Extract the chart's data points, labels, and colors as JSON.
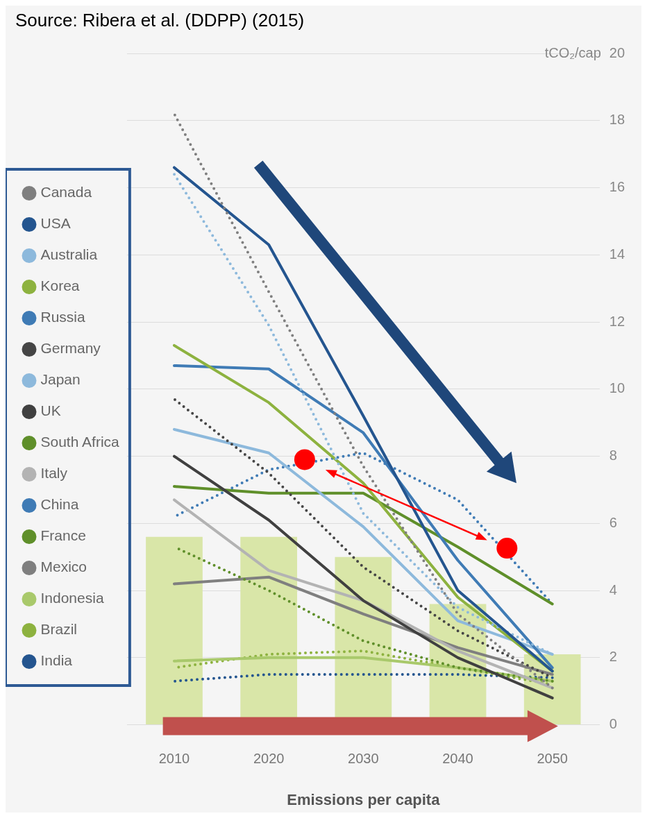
{
  "chart_data": {
    "type": "line",
    "annotations": [
      "Source: Ribera et al. (DDPP) (2015)"
    ],
    "xlabel": "Emissions per capita",
    "ylabel": "tCO₂/cap",
    "categories": [
      "2010",
      "2020",
      "2030",
      "2040",
      "2050"
    ],
    "ylim": [
      0,
      20
    ],
    "yticks": [
      0,
      2,
      4,
      6,
      8,
      10,
      12,
      14,
      16,
      18,
      20
    ],
    "grid": "y",
    "legend": "left",
    "series": [
      {
        "name": "Canada",
        "color": "#7f7f7f",
        "line_style": "dotted",
        "values": [
          18.2,
          12.9,
          7.7,
          3.3,
          1.1
        ]
      },
      {
        "name": "USA",
        "color": "#24558f",
        "line_style": "solid",
        "values": [
          16.6,
          14.3,
          9.2,
          4.0,
          1.6
        ]
      },
      {
        "name": "Australia",
        "color": "#8db9dc",
        "line_style": "dotted",
        "values": [
          16.4,
          11.9,
          6.3,
          3.5,
          2.1
        ]
      },
      {
        "name": "Korea",
        "color": "#8db23f",
        "line_style": "solid",
        "values": [
          11.3,
          9.6,
          7.2,
          3.8,
          1.6
        ]
      },
      {
        "name": "Russia",
        "color": "#3f7bb5",
        "line_style": "solid",
        "values": [
          10.7,
          10.6,
          8.7,
          4.9,
          1.7
        ]
      },
      {
        "name": "Germany",
        "color": "#454545",
        "line_style": "dotted",
        "values": [
          9.7,
          7.5,
          4.7,
          2.8,
          1.4
        ]
      },
      {
        "name": "Japan",
        "color": "#8db9dc",
        "line_style": "solid",
        "values": [
          8.8,
          8.1,
          5.9,
          3.1,
          2.1
        ]
      },
      {
        "name": "UK",
        "color": "#404040",
        "line_style": "solid",
        "values": [
          8.0,
          6.1,
          3.7,
          2.0,
          0.8
        ]
      },
      {
        "name": "South Africa",
        "color": "#5f8f2a",
        "line_style": "solid",
        "values": [
          7.1,
          6.9,
          6.9,
          5.3,
          3.6
        ]
      },
      {
        "name": "Italy",
        "color": "#b3b3b3",
        "line_style": "solid",
        "values": [
          6.7,
          4.6,
          3.7,
          2.2,
          1.1
        ]
      },
      {
        "name": "China",
        "color": "#3f7bb5",
        "line_style": "dotted",
        "values": [
          6.2,
          7.6,
          8.1,
          6.7,
          3.6
        ]
      },
      {
        "name": "France",
        "color": "#5f8f2a",
        "line_style": "dotted",
        "values": [
          5.3,
          4.0,
          2.5,
          1.7,
          1.3
        ]
      },
      {
        "name": "Mexico",
        "color": "#7f7f7f",
        "line_style": "solid",
        "values": [
          4.2,
          4.4,
          3.3,
          2.3,
          1.5
        ]
      },
      {
        "name": "Indonesia",
        "color": "#a9c96b",
        "line_style": "solid",
        "values": [
          1.9,
          2.0,
          2.0,
          1.7,
          1.3
        ]
      },
      {
        "name": "Brazil",
        "color": "#8db23f",
        "line_style": "dotted",
        "values": [
          1.7,
          2.1,
          2.2,
          1.7,
          1.2
        ]
      },
      {
        "name": "India",
        "color": "#24558f",
        "line_style": "dotted",
        "values": [
          1.3,
          1.5,
          1.5,
          1.5,
          1.4
        ]
      },
      {
        "type": "bar",
        "color": "#d9e6a8",
        "values": [
          5.6,
          5.6,
          5.0,
          3.6,
          2.1
        ]
      }
    ]
  }
}
